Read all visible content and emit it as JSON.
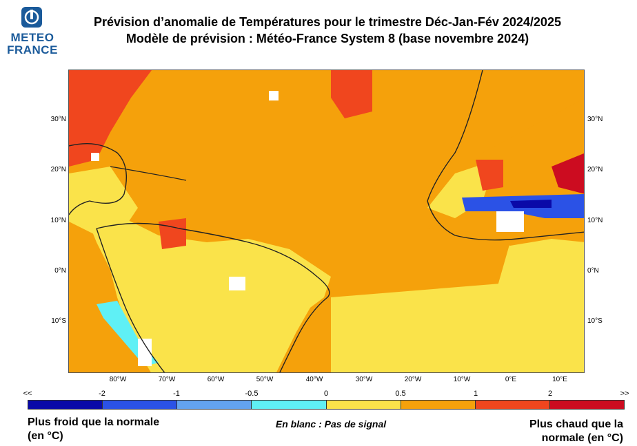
{
  "logo": {
    "line1": "METEO",
    "line2": "FRANCE"
  },
  "title": {
    "line1": "Prévision d’anomalie de Températures pour le trimestre Déc-Jan-Fév 2024/2025",
    "line2": "Modèle de prévision : Météo-France System 8 (base novembre 2024)"
  },
  "axes": {
    "lat_labels_left": [
      "30°N",
      "20°N",
      "10°N",
      "0°N",
      "10°S"
    ],
    "lat_labels_right": [
      "30°N",
      "20°N",
      "10°N",
      "0°N",
      "10°S"
    ],
    "lon_labels": [
      "80°W",
      "70°W",
      "60°W",
      "50°W",
      "40°W",
      "30°W",
      "20°W",
      "10°W",
      "0°E",
      "10°E"
    ]
  },
  "colorbar": {
    "tick_labels": [
      "<<",
      "-2",
      "-1",
      "-0.5",
      "0",
      "0.5",
      "1",
      "2",
      ">>"
    ],
    "colors": [
      "#0a0aa8",
      "#2b52e6",
      "#63a3f0",
      "#5ff0f5",
      "#fae34a",
      "#f5a10b",
      "#f0461e",
      "#cc0c20"
    ],
    "ocean_base_color": "#f5a10b",
    "land_base_color": "#fae34a"
  },
  "footer": {
    "left_line1": "Plus froid que la normale",
    "left_line2": "(en °C)",
    "middle": "En blanc : Pas de signal",
    "right_line1": "Plus chaud que la",
    "right_line2": "normale (en °C)"
  }
}
